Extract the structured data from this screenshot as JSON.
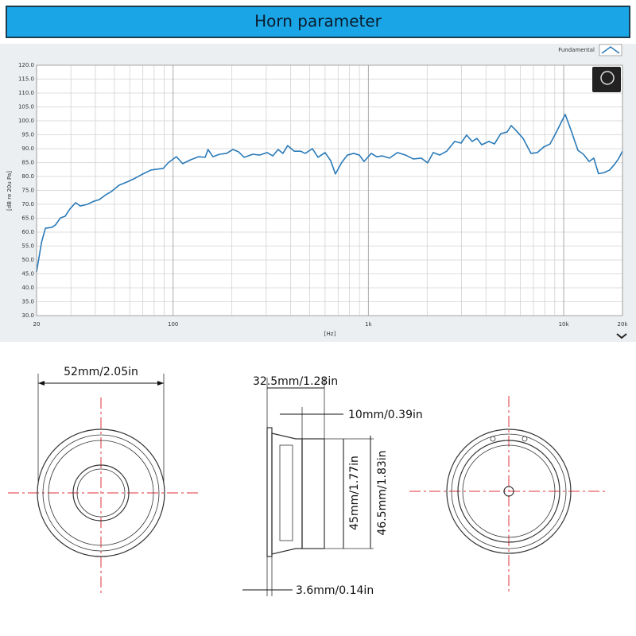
{
  "chart_data": {
    "type": "line",
    "title": "Horn parameter",
    "xlabel": "[Hz]",
    "ylabel": "[dB re 20u Pa]",
    "xscale": "log",
    "xlim": [
      20,
      20000
    ],
    "ylim": [
      30,
      120
    ],
    "xticks": [
      20,
      100,
      {
        "value": 1000,
        "label": "1k"
      },
      {
        "value": 10000,
        "label": "10k"
      },
      {
        "value": 20000,
        "label": "20k"
      }
    ],
    "xminorticks": [
      30,
      40,
      50,
      60,
      70,
      80,
      90,
      200,
      300,
      400,
      500,
      600,
      700,
      800,
      900,
      2000,
      3000,
      4000,
      5000,
      6000,
      7000,
      8000,
      9000
    ],
    "yticks": [
      {
        "value": 30,
        "label": "30.0"
      },
      {
        "value": 35,
        "label": "35.0"
      },
      {
        "value": 40,
        "label": "40.0"
      },
      {
        "value": 45,
        "label": "45.0"
      },
      {
        "value": 50,
        "label": "50.0"
      },
      {
        "value": 55,
        "label": "55.0"
      },
      {
        "value": 60,
        "label": "60.0"
      },
      {
        "value": 65,
        "label": "65.0"
      },
      {
        "value": 70,
        "label": "70.0"
      },
      {
        "value": 75,
        "label": "75.0"
      },
      {
        "value": 80,
        "label": "80.0"
      },
      {
        "value": 85,
        "label": "85.0"
      },
      {
        "value": 90,
        "label": "90.0"
      },
      {
        "value": 95,
        "label": "95.0"
      },
      {
        "value": 100,
        "label": "100.0"
      },
      {
        "value": 105,
        "label": "105.0"
      },
      {
        "value": 110,
        "label": "110.0"
      },
      {
        "value": 115,
        "label": "115.0"
      },
      {
        "value": 120,
        "label": "120.0"
      }
    ],
    "grid": true,
    "legend": "upper right",
    "x": [
      20,
      21.2,
      22.2,
      23.9,
      25,
      26.5,
      28,
      29.6,
      31.7,
      33.5,
      36.4,
      39.3,
      41.9,
      45.2,
      48.3,
      53,
      58,
      64,
      70,
      77,
      82,
      89,
      95,
      104,
      112,
      123,
      135,
      146,
      151,
      160,
      173,
      188,
      202,
      216,
      231,
      256,
      278,
      303,
      324,
      345,
      365,
      386,
      417,
      449,
      475,
      517,
      552,
      600,
      641,
      678,
      731,
      781,
      841,
      899,
      950,
      1034,
      1104,
      1179,
      1283,
      1409,
      1547,
      1699,
      1866,
      2011,
      2148,
      2316,
      2518,
      2766,
      2982,
      3184,
      3400,
      3596,
      3804,
      4140,
      4420,
      4764,
      5136,
      5382,
      5746,
      6194,
      6802,
      7332,
      7904,
      8516,
      9180,
      9700,
      10180,
      10870,
      11830,
      12620,
      13490,
      14260,
      15070,
      16110,
      17180,
      18190,
      19060,
      20000
    ],
    "series": [
      {
        "name": "Fundamental",
        "color": "#2a7ab8",
        "values": [
          45.7,
          56.3,
          61.4,
          61.7,
          62.6,
          65.1,
          65.7,
          68.3,
          70.6,
          69.4,
          70,
          71.1,
          71.7,
          73.4,
          74.6,
          76.9,
          78,
          79.4,
          80.9,
          82.3,
          82.6,
          82.9,
          85.1,
          87.1,
          84.6,
          86,
          87.1,
          86.9,
          89.7,
          87.1,
          88,
          88.3,
          89.7,
          88.9,
          86.9,
          88,
          87.7,
          88.6,
          87.4,
          89.7,
          88.3,
          91.1,
          89.1,
          89.1,
          88.3,
          90,
          86.9,
          88.6,
          85.7,
          80.9,
          85.1,
          87.7,
          88.3,
          87.7,
          85.4,
          88.3,
          87.1,
          87.4,
          86.6,
          88.6,
          87.7,
          86.3,
          86.6,
          84.9,
          88.6,
          87.7,
          89.1,
          92.6,
          92,
          94.9,
          92.6,
          93.7,
          91.4,
          92.6,
          91.7,
          95.4,
          96,
          98.3,
          96.3,
          93.7,
          88.3,
          88.6,
          90.6,
          91.7,
          96,
          99.4,
          102.3,
          96.9,
          89.4,
          88,
          85.4,
          86.6,
          81,
          81.4,
          82.3,
          84.3,
          86.3,
          89.1
        ]
      }
    ]
  },
  "dimensions": {
    "front_diameter": "52mm/2.05in",
    "depth": "32.5mm/1.28in",
    "magnet_depth": "10mm/0.39in",
    "inner_height": "45mm/1.77in",
    "outer_height": "46.5mm/1.83in",
    "flange": "3.6mm/0.14in"
  }
}
